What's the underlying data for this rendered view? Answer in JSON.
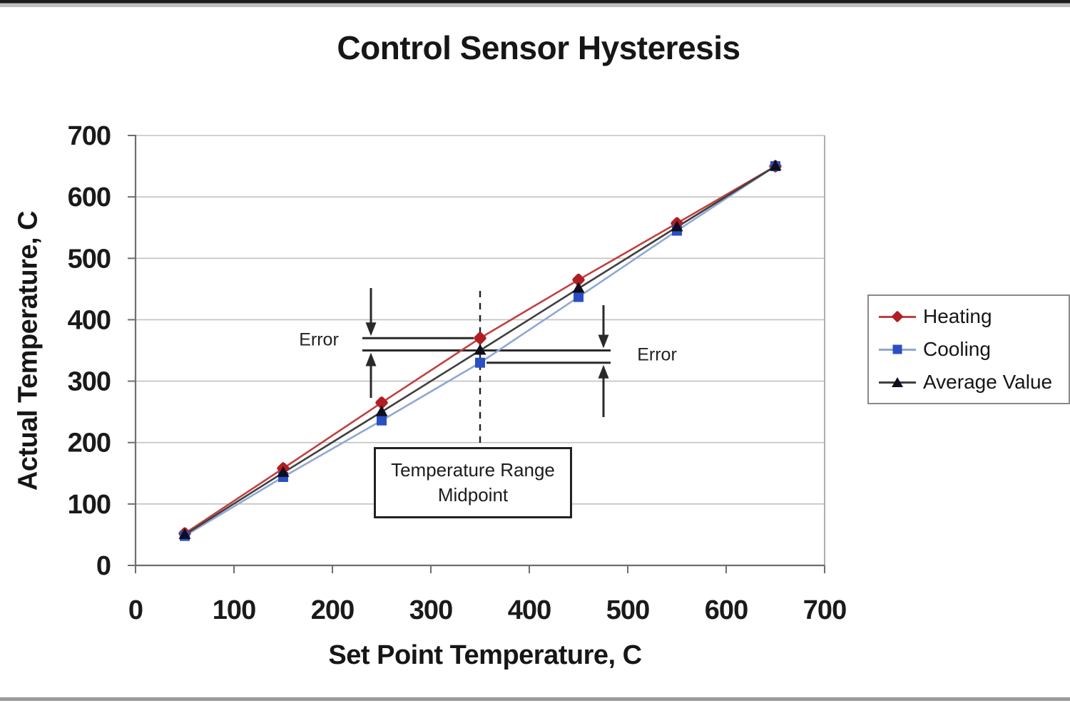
{
  "chart_data": {
    "type": "line",
    "title": "Control Sensor Hysteresis",
    "xlabel": "Set Point Temperature, C",
    "ylabel": "Actual Temperature, C",
    "xlim": [
      0,
      700
    ],
    "ylim": [
      0,
      700
    ],
    "xticks": [
      0,
      100,
      200,
      300,
      400,
      500,
      600,
      700
    ],
    "yticks": [
      0,
      100,
      200,
      300,
      400,
      500,
      600,
      700
    ],
    "grid": "horizontal-only",
    "legend_position": "right",
    "x": [
      50,
      150,
      250,
      350,
      450,
      550,
      650
    ],
    "series": [
      {
        "name": "Heating",
        "marker": "diamond",
        "marker_color": "#b01e23",
        "line_color": "#c14040",
        "values": [
          52,
          158,
          265,
          370,
          465,
          557,
          650
        ]
      },
      {
        "name": "Cooling",
        "marker": "square",
        "marker_color": "#2a4fc4",
        "line_color": "#8fa8d4",
        "values": [
          48,
          144,
          236,
          330,
          437,
          545,
          650
        ]
      },
      {
        "name": "Average Value",
        "marker": "triangle",
        "marker_color": "#0e0e1c",
        "line_color": "#3f3f3f",
        "values": [
          50,
          151,
          250,
          350,
          451,
          551,
          650
        ]
      }
    ],
    "annotations": {
      "error_label_left": "Error",
      "error_label_right": "Error",
      "midpoint_box_line1": "Temperature Range",
      "midpoint_box_line2": "Midpoint",
      "midpoint_x": 350,
      "heating_value_at_midpoint": 370,
      "average_value_at_midpoint": 350,
      "cooling_value_at_midpoint": 330
    },
    "colors": {
      "gridline": "#c2c2c2",
      "axis": "#6e6e6e",
      "annotation": "#2a2a2a",
      "text": "#161616"
    }
  }
}
